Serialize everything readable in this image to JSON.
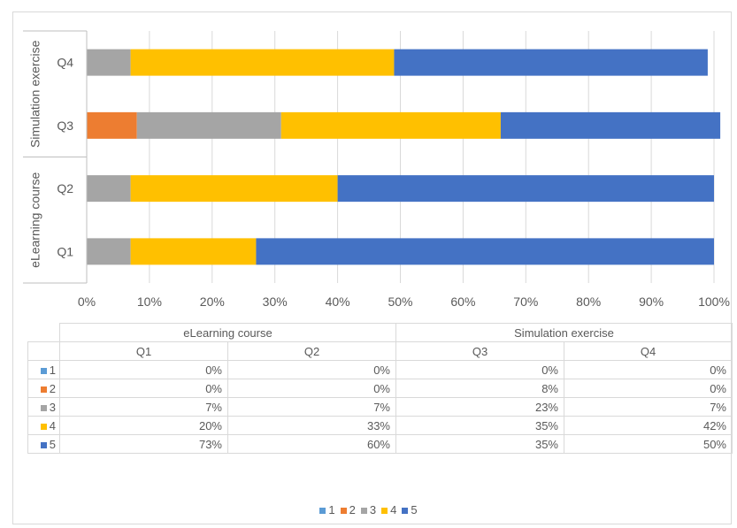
{
  "chart_data": {
    "type": "bar",
    "orientation": "horizontal",
    "stacked": "percent",
    "categories": [
      "Q1",
      "Q2",
      "Q3",
      "Q4"
    ],
    "groups": [
      {
        "label": "eLearning course",
        "categories": [
          "Q1",
          "Q2"
        ]
      },
      {
        "label": "Simulation exercise",
        "categories": [
          "Q3",
          "Q4"
        ]
      }
    ],
    "series": [
      {
        "name": "1",
        "color": "#5b9bd5",
        "values": [
          0,
          0,
          0,
          0
        ],
        "labels": [
          "0%",
          "0%",
          "0%",
          "0%"
        ]
      },
      {
        "name": "2",
        "color": "#ed7d31",
        "values": [
          0,
          0,
          8,
          0
        ],
        "labels": [
          "0%",
          "0%",
          "8%",
          "0%"
        ]
      },
      {
        "name": "3",
        "color": "#a5a5a5",
        "values": [
          7,
          7,
          23,
          7
        ],
        "labels": [
          "7%",
          "7%",
          "23%",
          "7%"
        ]
      },
      {
        "name": "4",
        "color": "#ffc000",
        "values": [
          20,
          33,
          35,
          42
        ],
        "labels": [
          "20%",
          "33%",
          "35%",
          "42%"
        ]
      },
      {
        "name": "5",
        "color": "#4472c4",
        "values": [
          73,
          60,
          35,
          50
        ],
        "labels": [
          "73%",
          "60%",
          "35%",
          "50%"
        ]
      }
    ],
    "xlim": [
      0,
      100
    ],
    "x_ticks": [
      "0%",
      "10%",
      "20%",
      "30%",
      "40%",
      "50%",
      "60%",
      "70%",
      "80%",
      "90%",
      "100%"
    ],
    "grid": true,
    "legend_position": "bottom",
    "data_table": true
  }
}
